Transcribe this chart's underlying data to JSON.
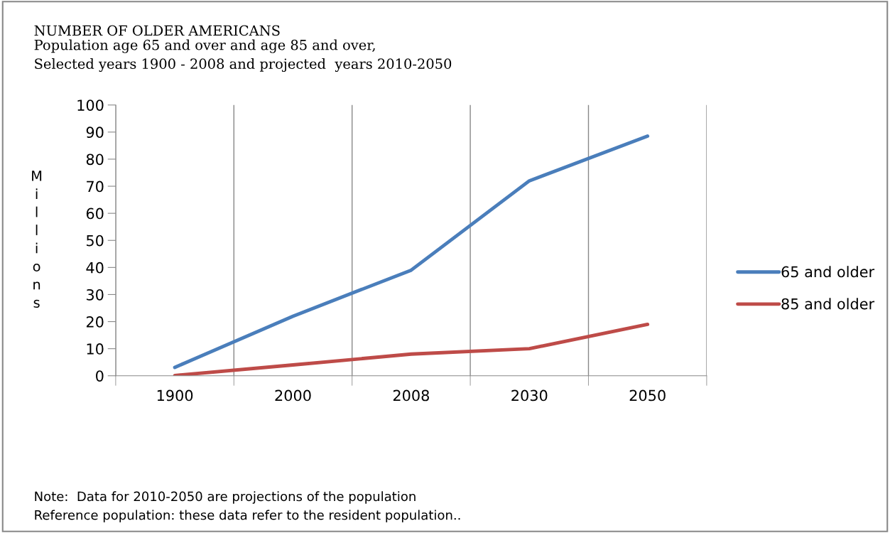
{
  "chart_data": {
    "type": "line",
    "title": "NUMBER OF OLDER AMERICANS",
    "subtitle": "Population age 65 and over and age 85 and over,\nSelected years 1900 - 2008 and projected  years 2010-2050",
    "ylabel": "Millions",
    "categories": [
      "1900",
      "2000",
      "2008",
      "2030",
      "2050"
    ],
    "series": [
      {
        "name": "65 and older",
        "color": "#4a7ebb",
        "values": [
          3.1,
          22,
          39,
          72,
          88.5
        ]
      },
      {
        "name": "85 and older",
        "color": "#be4b48",
        "values": [
          0.1,
          4,
          8,
          10,
          19
        ]
      }
    ],
    "ylim": [
      0,
      100
    ],
    "yticks": [
      0,
      10,
      20,
      30,
      40,
      50,
      60,
      70,
      80,
      90,
      100
    ],
    "grid": "x",
    "legend": "right",
    "marker": "none",
    "line_style": "solid",
    "annotations": [
      "Note:  Data for 2010-2050 are projections of the population",
      "Reference population: these data refer to the resident population.."
    ]
  }
}
